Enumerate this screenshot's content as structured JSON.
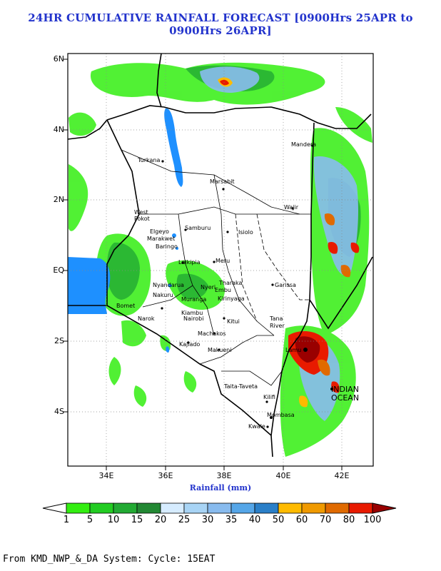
{
  "title": "24HR CUMULATIVE RAINFALL FORECAST [0900Hrs 25APR to 0900Hrs 26APR]",
  "y_ticks": [
    "6N",
    "4N",
    "2N",
    "EQ",
    "2S",
    "4S"
  ],
  "x_ticks": [
    "34E",
    "36E",
    "38E",
    "40E",
    "42E"
  ],
  "xlabel": "Rainfall (mm)",
  "legend": {
    "labels": [
      "1",
      "5",
      "10",
      "15",
      "20",
      "25",
      "30",
      "35",
      "40",
      "50",
      "60",
      "70",
      "80",
      "100"
    ],
    "colors": [
      "#ffffff",
      "#33ee11",
      "#22cc22",
      "#22aa33",
      "#228833",
      "#d6ecff",
      "#a8d4f5",
      "#88bbee",
      "#55a6e8",
      "#2a7fc8",
      "#ffbb00",
      "#f09a00",
      "#e06a00",
      "#e81a00",
      "#990000"
    ]
  },
  "places": {
    "turkana": "Turkana",
    "marsabit": "Marsabit",
    "mandera": "Mandera",
    "wajir": "Wajir",
    "west_pokot": "West\nPokot",
    "samburu": "Samburu",
    "isiolo": "Isiolo",
    "elgeyo": "Elgeyo",
    "marakwet": "Marakwet",
    "baringo": "Baringo",
    "laikipia": "Laikipia",
    "meru": "Meru",
    "nyandarua": "Nyandarua",
    "nyeri": "Nyeri",
    "tharaka": "Tharaka",
    "embu": "Embu",
    "kirinyaga": "Kirinyaga",
    "muranga": "Muranga",
    "nakuru": "Nakuru",
    "bomet": "Bomet",
    "narok": "Narok",
    "kiambu": "Kiambu",
    "nairobi": "Nairobi",
    "kitui": "Kitui",
    "garissa": "Garissa",
    "tana_river": "Tana\nRiver",
    "machakos": "Machakos",
    "kajiado": "Kajiado",
    "makueni": "Makueni",
    "lamu": "Lamu",
    "taita_taveta": "Taita-Taveta",
    "kilifi": "Kilifi",
    "mombasa": "Mombasa",
    "kwale": "Kwale",
    "indian_ocean": "INDIAN\nOCEAN"
  },
  "footer": "From KMD_NWP_&_DA System: Cycle: 15EAT",
  "colors": {
    "title": "#2233cc",
    "lake": "#1e90ff",
    "frame": "#000000"
  }
}
